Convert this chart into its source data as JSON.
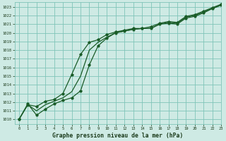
{
  "title": "Graphe pression niveau de la mer (hPa)",
  "bg_color": "#ceeae4",
  "grid_color": "#80c4b8",
  "line_color": "#1a5c28",
  "xlim": [
    -0.5,
    23
  ],
  "ylim": [
    1009.5,
    1023.5
  ],
  "xticks": [
    0,
    1,
    2,
    3,
    4,
    5,
    6,
    7,
    8,
    9,
    10,
    11,
    12,
    13,
    14,
    15,
    16,
    17,
    18,
    19,
    20,
    21,
    22,
    23
  ],
  "yticks": [
    1010,
    1011,
    1012,
    1013,
    1014,
    1015,
    1016,
    1017,
    1018,
    1019,
    1020,
    1021,
    1022,
    1023
  ],
  "curve_upper_x": [
    0,
    1,
    2,
    3,
    4,
    5,
    6,
    7,
    8,
    9,
    10,
    11,
    12,
    13,
    14,
    15,
    16,
    17,
    18,
    19,
    20,
    21,
    22,
    23
  ],
  "curve_upper_y": [
    1010.0,
    1011.7,
    1011.5,
    1012.1,
    1012.3,
    1013.0,
    1015.2,
    1017.5,
    1018.9,
    1019.2,
    1019.8,
    1020.1,
    1020.3,
    1020.5,
    1020.5,
    1020.7,
    1021.1,
    1021.3,
    1021.2,
    1021.9,
    1022.1,
    1022.5,
    1022.9,
    1023.3
  ],
  "curve_mid_x": [
    0,
    1,
    2,
    3,
    4,
    5,
    6,
    7,
    8,
    9,
    10,
    11,
    12,
    13,
    14,
    15,
    16,
    17,
    18,
    19,
    20,
    21,
    22,
    23
  ],
  "curve_mid_y": [
    1010.0,
    1011.7,
    1011.0,
    1011.7,
    1012.1,
    1012.5,
    1013.2,
    1015.0,
    1018.0,
    1018.9,
    1019.5,
    1020.0,
    1020.2,
    1020.4,
    1020.5,
    1020.5,
    1021.0,
    1021.2,
    1021.1,
    1021.8,
    1022.0,
    1022.4,
    1022.8,
    1023.2
  ],
  "curve_lower_x": [
    0,
    1,
    2,
    3,
    4,
    5,
    6,
    7,
    8,
    9,
    10,
    11,
    12,
    13,
    14,
    15,
    16,
    17,
    18,
    19,
    20,
    21,
    22,
    23
  ],
  "curve_lower_y": [
    1010.0,
    1011.8,
    1010.5,
    1011.2,
    1011.8,
    1012.2,
    1012.5,
    1013.3,
    1016.3,
    1018.5,
    1019.4,
    1020.0,
    1020.2,
    1020.4,
    1020.5,
    1020.5,
    1021.0,
    1021.1,
    1021.0,
    1021.7,
    1021.9,
    1022.3,
    1022.8,
    1023.2
  ]
}
